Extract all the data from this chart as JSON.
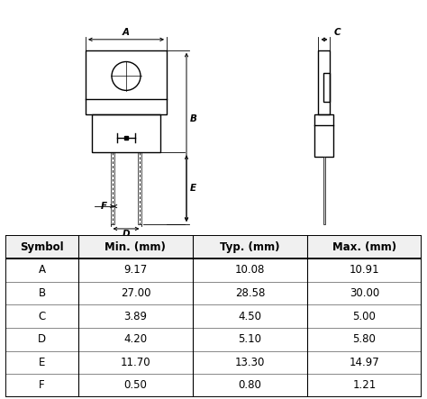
{
  "table_headers": [
    "Symbol",
    "Min. (mm)",
    "Typ. (mm)",
    "Max. (mm)"
  ],
  "table_rows": [
    [
      "A",
      "9.17",
      "10.08",
      "10.91"
    ],
    [
      "B",
      "27.00",
      "28.58",
      "30.00"
    ],
    [
      "C",
      "3.89",
      "4.50",
      "5.00"
    ],
    [
      "D",
      "4.20",
      "5.10",
      "5.80"
    ],
    [
      "E",
      "11.70",
      "13.30",
      "14.97"
    ],
    [
      "F",
      "0.50",
      "0.80",
      "1.21"
    ]
  ],
  "bg_color": "#ffffff",
  "drawing_color": "#000000",
  "dim_color": "#000000",
  "fig_width": 4.74,
  "fig_height": 4.43,
  "dpi": 100
}
